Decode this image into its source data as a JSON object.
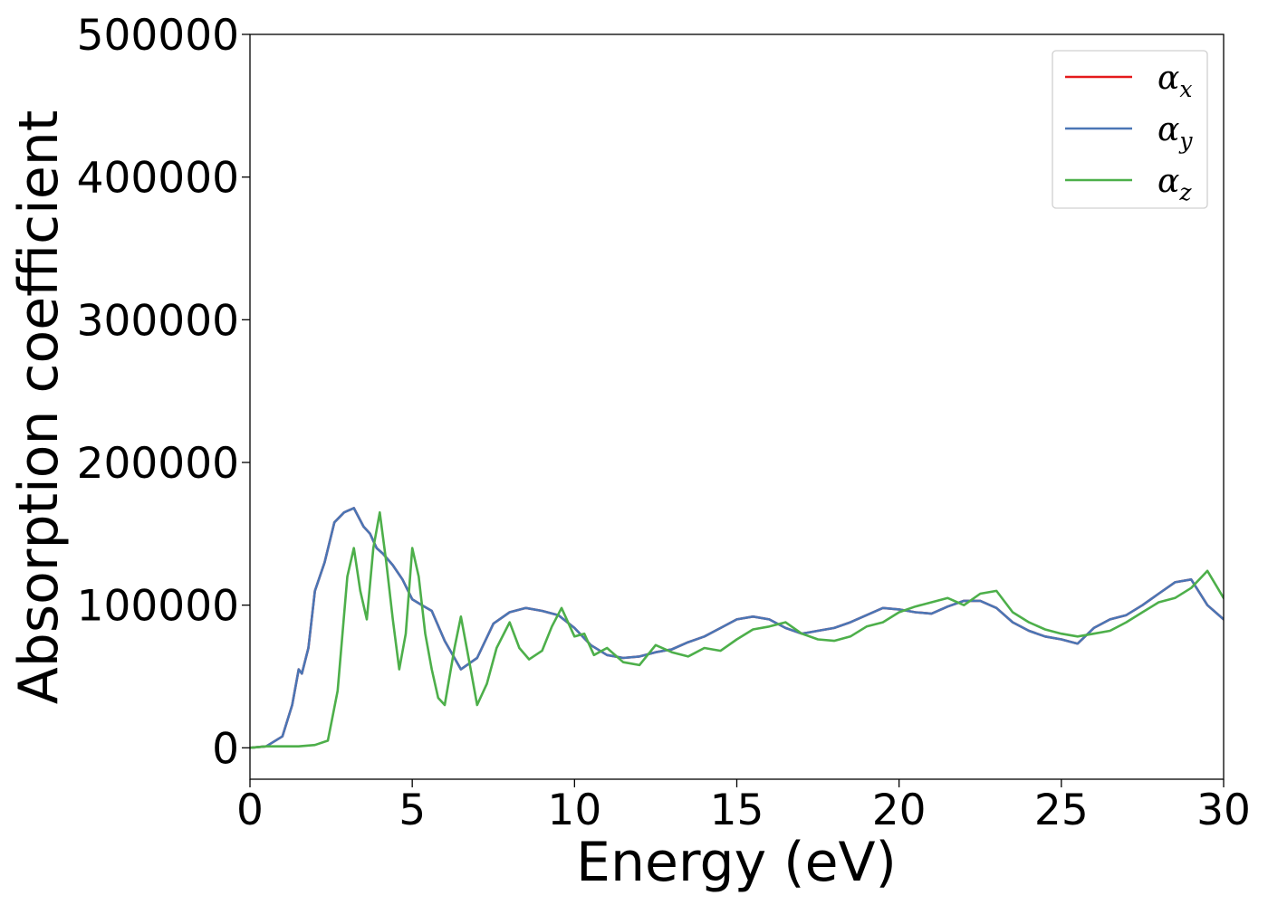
{
  "chart_data": {
    "type": "line",
    "title": "",
    "xlabel": "Energy (eV)",
    "ylabel": "Absorption coefficient",
    "xlim": [
      0,
      30
    ],
    "ylim": [
      -22000,
      500000
    ],
    "xticks": [
      0,
      5,
      10,
      15,
      20,
      25,
      30
    ],
    "yticks": [
      0,
      100000,
      200000,
      300000,
      400000,
      500000
    ],
    "grid": false,
    "legend_position": "top-right",
    "series": [
      {
        "name": "α_x",
        "legend_symbol": "α",
        "legend_sub": "x",
        "color": "#e41a1c",
        "x": [
          0,
          0.5,
          1,
          1.3,
          1.5,
          1.6,
          1.8,
          2,
          2.3,
          2.6,
          2.9,
          3.2,
          3.5,
          3.7,
          3.9,
          4.1,
          4.4,
          4.7,
          5.0,
          5.3,
          5.6,
          6.0,
          6.5,
          7.0,
          7.5,
          8.0,
          8.5,
          9.0,
          9.5,
          10.0,
          10.5,
          11.0,
          11.5,
          12.0,
          12.5,
          13.0,
          13.5,
          14.0,
          14.5,
          15.0,
          15.5,
          16.0,
          16.5,
          17.0,
          17.5,
          18.0,
          18.5,
          19.0,
          19.5,
          20.0,
          20.5,
          21.0,
          21.5,
          22.0,
          22.5,
          23.0,
          23.5,
          24.0,
          24.5,
          25.0,
          25.5,
          26.0,
          26.5,
          27.0,
          27.5,
          28.0,
          28.5,
          29.0,
          29.5,
          30.0
        ],
        "y": [
          0,
          1000,
          8000,
          30000,
          55000,
          52000,
          70000,
          110000,
          130000,
          158000,
          165000,
          168000,
          155000,
          150000,
          140000,
          136000,
          128000,
          118000,
          104000,
          100000,
          96000,
          75000,
          55000,
          63000,
          87000,
          95000,
          98000,
          96000,
          93000,
          84000,
          72000,
          65000,
          63000,
          64000,
          67000,
          69000,
          74000,
          78000,
          84000,
          90000,
          92000,
          90000,
          84000,
          80000,
          82000,
          84000,
          88000,
          93000,
          98000,
          97000,
          95000,
          94000,
          99000,
          103000,
          103000,
          98000,
          88000,
          82000,
          78000,
          76000,
          73000,
          84000,
          90000,
          93000,
          100000,
          108000,
          116000,
          118000,
          100000,
          90000
        ]
      },
      {
        "name": "α_y",
        "legend_symbol": "α",
        "legend_sub": "y",
        "color": "#4a76b5",
        "x": [
          0,
          0.5,
          1,
          1.3,
          1.5,
          1.6,
          1.8,
          2,
          2.3,
          2.6,
          2.9,
          3.2,
          3.5,
          3.7,
          3.9,
          4.1,
          4.4,
          4.7,
          5.0,
          5.3,
          5.6,
          6.0,
          6.5,
          7.0,
          7.5,
          8.0,
          8.5,
          9.0,
          9.5,
          10.0,
          10.5,
          11.0,
          11.5,
          12.0,
          12.5,
          13.0,
          13.5,
          14.0,
          14.5,
          15.0,
          15.5,
          16.0,
          16.5,
          17.0,
          17.5,
          18.0,
          18.5,
          19.0,
          19.5,
          20.0,
          20.5,
          21.0,
          21.5,
          22.0,
          22.5,
          23.0,
          23.5,
          24.0,
          24.5,
          25.0,
          25.5,
          26.0,
          26.5,
          27.0,
          27.5,
          28.0,
          28.5,
          29.0,
          29.5,
          30.0
        ],
        "y": [
          0,
          1000,
          8000,
          30000,
          55000,
          52000,
          70000,
          110000,
          130000,
          158000,
          165000,
          168000,
          155000,
          150000,
          140000,
          136000,
          128000,
          118000,
          104000,
          100000,
          96000,
          75000,
          55000,
          63000,
          87000,
          95000,
          98000,
          96000,
          93000,
          84000,
          72000,
          65000,
          63000,
          64000,
          67000,
          69000,
          74000,
          78000,
          84000,
          90000,
          92000,
          90000,
          84000,
          80000,
          82000,
          84000,
          88000,
          93000,
          98000,
          97000,
          95000,
          94000,
          99000,
          103000,
          103000,
          98000,
          88000,
          82000,
          78000,
          76000,
          73000,
          84000,
          90000,
          93000,
          100000,
          108000,
          116000,
          118000,
          100000,
          90000
        ]
      },
      {
        "name": "α_z",
        "legend_symbol": "α",
        "legend_sub": "z",
        "color": "#4daf4a",
        "x": [
          0,
          0.5,
          1,
          1.5,
          2.0,
          2.4,
          2.7,
          3.0,
          3.2,
          3.4,
          3.6,
          3.8,
          4.0,
          4.2,
          4.4,
          4.6,
          4.8,
          5.0,
          5.2,
          5.4,
          5.6,
          5.8,
          6.0,
          6.3,
          6.5,
          6.8,
          7.0,
          7.3,
          7.6,
          8.0,
          8.3,
          8.6,
          9.0,
          9.3,
          9.6,
          10.0,
          10.3,
          10.6,
          11.0,
          11.5,
          12.0,
          12.5,
          13.0,
          13.5,
          14.0,
          14.5,
          15.0,
          15.5,
          16.0,
          16.5,
          17.0,
          17.5,
          18.0,
          18.5,
          19.0,
          19.5,
          20.0,
          20.5,
          21.0,
          21.5,
          22.0,
          22.5,
          23.0,
          23.5,
          24.0,
          24.5,
          25.0,
          25.5,
          26.0,
          26.5,
          27.0,
          27.5,
          28.0,
          28.5,
          29.0,
          29.5,
          30.0
        ],
        "y": [
          0,
          1000,
          1000,
          1000,
          2000,
          5000,
          40000,
          120000,
          140000,
          110000,
          90000,
          140000,
          165000,
          130000,
          90000,
          55000,
          80000,
          140000,
          120000,
          80000,
          55000,
          35000,
          30000,
          70000,
          92000,
          55000,
          30000,
          45000,
          70000,
          88000,
          70000,
          62000,
          68000,
          85000,
          98000,
          78000,
          80000,
          65000,
          70000,
          60000,
          58000,
          72000,
          67000,
          64000,
          70000,
          68000,
          76000,
          83000,
          85000,
          88000,
          80000,
          76000,
          75000,
          78000,
          85000,
          88000,
          95000,
          99000,
          102000,
          105000,
          100000,
          108000,
          110000,
          95000,
          88000,
          83000,
          80000,
          78000,
          80000,
          82000,
          88000,
          95000,
          102000,
          105000,
          112000,
          124000,
          105000
        ]
      }
    ]
  }
}
